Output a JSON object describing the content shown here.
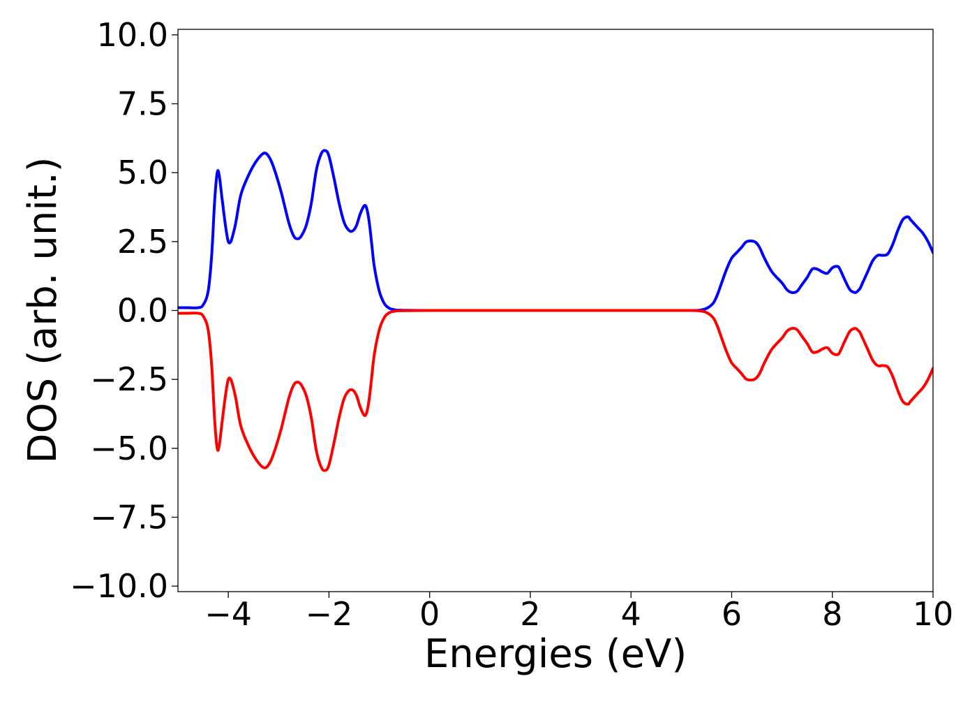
{
  "chart_data": {
    "type": "line",
    "title": "",
    "xlabel": "Energies (eV)",
    "ylabel": "DOS (arb. unit.)",
    "xlim": [
      -5,
      10
    ],
    "ylim": [
      -10.2,
      10.2
    ],
    "xticks": [
      -4,
      -2,
      0,
      2,
      4,
      6,
      8,
      10
    ],
    "xtick_labels": [
      "−4",
      "−2",
      "0",
      "2",
      "4",
      "6",
      "8",
      "10"
    ],
    "yticks": [
      10.0,
      7.5,
      5.0,
      2.5,
      0.0,
      -2.5,
      -5.0,
      -7.5,
      -10.0
    ],
    "ytick_labels": [
      "10.0",
      "7.5",
      "5.0",
      "2.5",
      "0.0",
      "−2.5",
      "−5.0",
      "−7.5",
      "−10.0"
    ],
    "grid": false,
    "legend": "none",
    "series": [
      {
        "color": "#0000ff",
        "x": [
          -5.0,
          -4.8,
          -4.6,
          -4.5,
          -4.4,
          -4.33,
          -4.27,
          -4.22,
          -4.18,
          -4.12,
          -4.05,
          -4.0,
          -3.95,
          -3.9,
          -3.85,
          -3.75,
          -3.6,
          -3.45,
          -3.3,
          -3.2,
          -3.1,
          -2.95,
          -2.8,
          -2.7,
          -2.62,
          -2.55,
          -2.45,
          -2.35,
          -2.25,
          -2.15,
          -2.07,
          -2.0,
          -1.9,
          -1.8,
          -1.7,
          -1.6,
          -1.52,
          -1.45,
          -1.38,
          -1.3,
          -1.25,
          -1.2,
          -1.15,
          -1.1,
          -1.0,
          -0.9,
          -0.8,
          -0.7,
          -0.6,
          0.0,
          2.0,
          4.0,
          5.0,
          5.4,
          5.6,
          5.7,
          5.8,
          5.9,
          6.0,
          6.1,
          6.2,
          6.3,
          6.45,
          6.55,
          6.65,
          6.8,
          7.0,
          7.1,
          7.2,
          7.3,
          7.4,
          7.5,
          7.6,
          7.7,
          7.8,
          7.9,
          8.0,
          8.1,
          8.15,
          8.25,
          8.35,
          8.45,
          8.5,
          8.55,
          8.6,
          8.7,
          8.8,
          8.9,
          9.0,
          9.1,
          9.2,
          9.3,
          9.4,
          9.5,
          9.55,
          9.6,
          9.7,
          9.8,
          9.9,
          10.0
        ],
        "y": [
          0.1,
          0.1,
          0.1,
          0.2,
          0.7,
          2.0,
          4.0,
          5.0,
          4.9,
          4.0,
          3.0,
          2.5,
          2.5,
          2.8,
          3.2,
          4.2,
          4.9,
          5.4,
          5.7,
          5.6,
          5.2,
          4.3,
          3.2,
          2.7,
          2.6,
          2.7,
          3.1,
          3.9,
          5.1,
          5.7,
          5.8,
          5.6,
          4.8,
          3.9,
          3.2,
          2.9,
          2.9,
          3.1,
          3.5,
          3.8,
          3.7,
          3.2,
          2.4,
          1.6,
          0.7,
          0.25,
          0.08,
          0.03,
          0.01,
          0.0,
          0.0,
          0.0,
          0.0,
          0.02,
          0.2,
          0.5,
          1.0,
          1.5,
          1.9,
          2.1,
          2.3,
          2.5,
          2.5,
          2.3,
          1.9,
          1.4,
          1.0,
          0.75,
          0.65,
          0.7,
          0.95,
          1.2,
          1.5,
          1.5,
          1.4,
          1.35,
          1.55,
          1.6,
          1.5,
          1.1,
          0.75,
          0.65,
          0.7,
          0.8,
          1.0,
          1.4,
          1.8,
          2.0,
          2.0,
          2.05,
          2.4,
          2.9,
          3.3,
          3.4,
          3.3,
          3.2,
          3.0,
          2.8,
          2.5,
          2.1
        ]
      },
      {
        "color": "#ff0000",
        "x": [
          -5.0,
          -4.8,
          -4.6,
          -4.5,
          -4.4,
          -4.33,
          -4.27,
          -4.22,
          -4.18,
          -4.12,
          -4.05,
          -4.0,
          -3.95,
          -3.9,
          -3.85,
          -3.75,
          -3.6,
          -3.45,
          -3.3,
          -3.2,
          -3.1,
          -2.95,
          -2.8,
          -2.7,
          -2.62,
          -2.55,
          -2.45,
          -2.35,
          -2.25,
          -2.15,
          -2.07,
          -2.0,
          -1.9,
          -1.8,
          -1.7,
          -1.6,
          -1.52,
          -1.45,
          -1.38,
          -1.3,
          -1.25,
          -1.2,
          -1.15,
          -1.1,
          -1.0,
          -0.9,
          -0.8,
          -0.7,
          -0.6,
          0.0,
          2.0,
          4.0,
          5.0,
          5.4,
          5.6,
          5.7,
          5.8,
          5.9,
          6.0,
          6.1,
          6.2,
          6.3,
          6.45,
          6.55,
          6.65,
          6.8,
          7.0,
          7.1,
          7.2,
          7.3,
          7.4,
          7.5,
          7.6,
          7.7,
          7.8,
          7.9,
          8.0,
          8.1,
          8.15,
          8.25,
          8.35,
          8.45,
          8.5,
          8.55,
          8.6,
          8.7,
          8.8,
          8.9,
          9.0,
          9.1,
          9.2,
          9.3,
          9.4,
          9.5,
          9.55,
          9.6,
          9.7,
          9.8,
          9.9,
          10.0
        ],
        "y": [
          -0.1,
          -0.1,
          -0.1,
          -0.2,
          -0.7,
          -2.0,
          -4.0,
          -5.0,
          -4.9,
          -4.0,
          -3.0,
          -2.5,
          -2.5,
          -2.8,
          -3.2,
          -4.2,
          -4.9,
          -5.4,
          -5.7,
          -5.6,
          -5.2,
          -4.3,
          -3.2,
          -2.7,
          -2.6,
          -2.7,
          -3.1,
          -3.9,
          -5.1,
          -5.7,
          -5.8,
          -5.6,
          -4.8,
          -3.9,
          -3.2,
          -2.9,
          -2.9,
          -3.1,
          -3.5,
          -3.8,
          -3.7,
          -3.2,
          -2.4,
          -1.6,
          -0.7,
          -0.25,
          -0.08,
          -0.03,
          -0.01,
          0.0,
          0.0,
          0.0,
          0.0,
          -0.02,
          -0.2,
          -0.5,
          -1.0,
          -1.5,
          -1.9,
          -2.1,
          -2.3,
          -2.5,
          -2.5,
          -2.3,
          -1.9,
          -1.4,
          -1.0,
          -0.75,
          -0.65,
          -0.7,
          -0.95,
          -1.2,
          -1.5,
          -1.5,
          -1.4,
          -1.35,
          -1.55,
          -1.6,
          -1.5,
          -1.1,
          -0.75,
          -0.65,
          -0.7,
          -0.8,
          -1.0,
          -1.4,
          -1.8,
          -2.0,
          -2.0,
          -2.05,
          -2.4,
          -2.9,
          -3.3,
          -3.4,
          -3.3,
          -3.2,
          -3.0,
          -2.8,
          -2.5,
          -2.1
        ]
      }
    ]
  }
}
